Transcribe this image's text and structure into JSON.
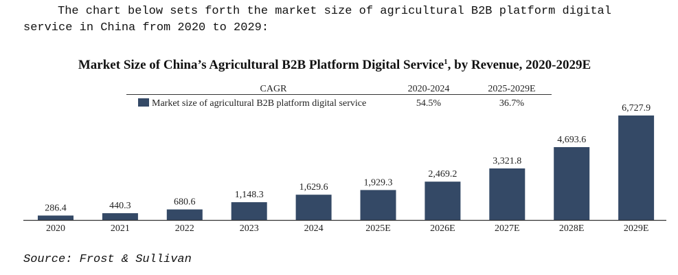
{
  "intro_text": "The chart below sets forth the market size of agricultural B2B platform digital service in China from 2020 to 2029:",
  "source_text": "Source: Frost  & Sullivan",
  "colors": {
    "bar": "#344966",
    "axis": "#333333",
    "text": "#222222"
  },
  "chart_data": {
    "type": "bar",
    "title": "Market Size of China’s Agricultural B2B Platform Digital Service",
    "title_superscript": "1",
    "title_suffix": ", by Revenue, 2020-2029E",
    "categories": [
      "2020",
      "2021",
      "2022",
      "2023",
      "2024",
      "2025E",
      "2026E",
      "2027E",
      "2028E",
      "2029E"
    ],
    "series": [
      {
        "name": "Market size of agricultural B2B platform digital service",
        "values": [
          286.4,
          440.3,
          680.6,
          1148.3,
          1629.6,
          1929.3,
          2469.2,
          3321.8,
          4693.6,
          6727.9
        ]
      }
    ],
    "value_labels": [
      "286.4",
      "440.3",
      "680.6",
      "1,148.3",
      "1,629.6",
      "1,929.3",
      "2,469.2",
      "3,321.8",
      "4,693.6",
      "6,727.9"
    ],
    "ylim": [
      0,
      6727.9
    ],
    "grid": false,
    "legend_position": "top",
    "cagr_table": {
      "header_label": "CAGR",
      "periods": [
        "2020-2024",
        "2025-2029E"
      ],
      "values": [
        "54.5%",
        "36.7%"
      ]
    }
  }
}
